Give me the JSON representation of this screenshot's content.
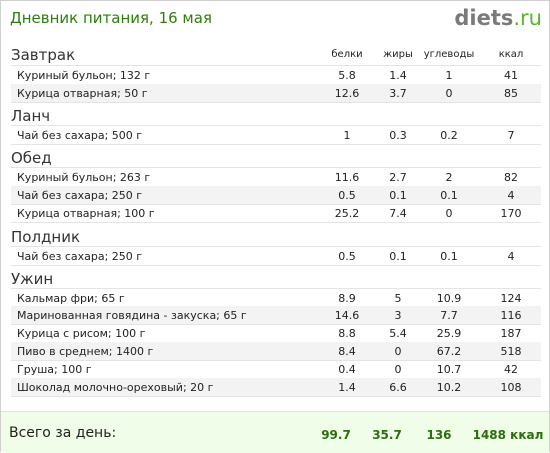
{
  "header": {
    "title": "Дневник питания, 16 мая",
    "logo_main": "diets",
    "logo_domain": ".ru"
  },
  "columns": [
    "белки",
    "жиры",
    "углеводы",
    "ккал"
  ],
  "sections": [
    {
      "name": "Завтрак",
      "items": [
        {
          "name": "Куриный бульон; 132 г",
          "protein": "5.8",
          "fat": "1.4",
          "carbs": "1",
          "kcal": "41"
        },
        {
          "name": "Курица отварная; 50 г",
          "protein": "12.6",
          "fat": "3.7",
          "carbs": "0",
          "kcal": "85"
        }
      ]
    },
    {
      "name": "Ланч",
      "items": [
        {
          "name": "Чай без сахара; 500 г",
          "protein": "1",
          "fat": "0.3",
          "carbs": "0.2",
          "kcal": "7"
        }
      ]
    },
    {
      "name": "Обед",
      "items": [
        {
          "name": "Куриный бульон; 263 г",
          "protein": "11.6",
          "fat": "2.7",
          "carbs": "2",
          "kcal": "82"
        },
        {
          "name": "Чай без сахара; 250 г",
          "protein": "0.5",
          "fat": "0.1",
          "carbs": "0.1",
          "kcal": "4"
        },
        {
          "name": "Курица отварная; 100 г",
          "protein": "25.2",
          "fat": "7.4",
          "carbs": "0",
          "kcal": "170"
        }
      ]
    },
    {
      "name": "Полдник",
      "items": [
        {
          "name": "Чай без сахара; 250 г",
          "protein": "0.5",
          "fat": "0.1",
          "carbs": "0.1",
          "kcal": "4"
        }
      ]
    },
    {
      "name": "Ужин",
      "items": [
        {
          "name": "Кальмар фри; 65 г",
          "protein": "8.9",
          "fat": "5",
          "carbs": "10.9",
          "kcal": "124"
        },
        {
          "name": "Маринованная говядина - закуска; 65 г",
          "protein": "14.6",
          "fat": "3",
          "carbs": "7.7",
          "kcal": "116"
        },
        {
          "name": "Курица с рисом; 100 г",
          "protein": "8.8",
          "fat": "5.4",
          "carbs": "25.9",
          "kcal": "187"
        },
        {
          "name": "Пиво в среднем; 1400 г",
          "protein": "8.4",
          "fat": "0",
          "carbs": "67.2",
          "kcal": "518"
        },
        {
          "name": "Груша; 100 г",
          "protein": "0.4",
          "fat": "0",
          "carbs": "10.7",
          "kcal": "42"
        },
        {
          "name": "Шоколад молочно-ореховый; 20 г",
          "protein": "1.4",
          "fat": "6.6",
          "carbs": "10.2",
          "kcal": "108"
        }
      ]
    }
  ],
  "total": {
    "label": "Всего за день:",
    "protein": "99.7",
    "fat": "35.7",
    "carbs": "136",
    "kcal": "1488 ккал"
  },
  "colors": {
    "title": "#2f7d0e",
    "total_bg": "#f0fde8",
    "total_value": "#2c6e0c",
    "row_shade": "#f3f3f3"
  }
}
